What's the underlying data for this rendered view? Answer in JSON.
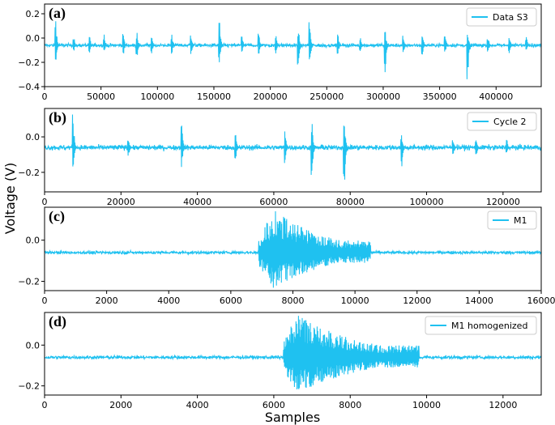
{
  "figure": {
    "ylabel": "Voltage (V)",
    "xlabel": "Samples",
    "line_color": "#1fc1f0"
  },
  "chart_data": [
    {
      "type": "line",
      "panel": "(a)",
      "series": [
        {
          "name": "Data S3"
        }
      ],
      "xlim": [
        0,
        440000
      ],
      "ylim": [
        -0.4,
        0.28
      ],
      "xticks": [
        0,
        50000,
        100000,
        150000,
        200000,
        250000,
        300000,
        350000,
        400000
      ],
      "yticks": [
        0.2,
        0.0,
        -0.2,
        -0.4
      ],
      "ytick_labels": [
        "0.2",
        "0.0",
        "−0.2",
        "−0.4"
      ],
      "baseline": -0.06,
      "noise": 0.012,
      "events": [
        {
          "x": 10000,
          "peak": 0.16,
          "trough": -0.21
        },
        {
          "x": 26000,
          "peak": 0.02,
          "trough": -0.11
        },
        {
          "x": 40000,
          "peak": 0.02,
          "trough": -0.12
        },
        {
          "x": 53000,
          "peak": 0.03,
          "trough": -0.12
        },
        {
          "x": 70000,
          "peak": 0.04,
          "trough": -0.14
        },
        {
          "x": 82000,
          "peak": 0.05,
          "trough": -0.2
        },
        {
          "x": 95000,
          "peak": 0.02,
          "trough": -0.13
        },
        {
          "x": 113000,
          "peak": 0.03,
          "trough": -0.13
        },
        {
          "x": 130000,
          "peak": 0.04,
          "trough": -0.14
        },
        {
          "x": 155000,
          "peak": 0.15,
          "trough": -0.24
        },
        {
          "x": 175000,
          "peak": 0.03,
          "trough": -0.13
        },
        {
          "x": 190000,
          "peak": 0.05,
          "trough": -0.15
        },
        {
          "x": 205000,
          "peak": 0.03,
          "trough": -0.13
        },
        {
          "x": 225000,
          "peak": 0.09,
          "trough": -0.23
        },
        {
          "x": 235000,
          "peak": 0.13,
          "trough": -0.28
        },
        {
          "x": 260000,
          "peak": 0.04,
          "trough": -0.14
        },
        {
          "x": 280000,
          "peak": 0.02,
          "trough": -0.12
        },
        {
          "x": 302000,
          "peak": 0.07,
          "trough": -0.32
        },
        {
          "x": 318000,
          "peak": 0.03,
          "trough": -0.13
        },
        {
          "x": 335000,
          "peak": 0.04,
          "trough": -0.15
        },
        {
          "x": 355000,
          "peak": 0.03,
          "trough": -0.12
        },
        {
          "x": 375000,
          "peak": 0.05,
          "trough": -0.36
        },
        {
          "x": 393000,
          "peak": 0.02,
          "trough": -0.12
        },
        {
          "x": 412000,
          "peak": 0.03,
          "trough": -0.13
        },
        {
          "x": 427000,
          "peak": 0.02,
          "trough": -0.11
        }
      ]
    },
    {
      "type": "line",
      "panel": "(b)",
      "series": [
        {
          "name": "Cycle 2"
        }
      ],
      "xlim": [
        0,
        130000
      ],
      "ylim": [
        -0.31,
        0.16
      ],
      "xticks": [
        0,
        20000,
        40000,
        60000,
        80000,
        100000,
        120000
      ],
      "yticks": [
        0.0,
        -0.2
      ],
      "ytick_labels": [
        "0.0",
        "−0.2"
      ],
      "baseline": -0.06,
      "noise": 0.012,
      "events": [
        {
          "x": 7500,
          "peak": 0.14,
          "trough": -0.25
        },
        {
          "x": 22000,
          "peak": 0.0,
          "trough": -0.12
        },
        {
          "x": 36000,
          "peak": 0.07,
          "trough": -0.17
        },
        {
          "x": 50000,
          "peak": 0.03,
          "trough": -0.15
        },
        {
          "x": 63000,
          "peak": 0.04,
          "trough": -0.16
        },
        {
          "x": 70000,
          "peak": 0.1,
          "trough": -0.26
        },
        {
          "x": 78500,
          "peak": 0.14,
          "trough": -0.3
        },
        {
          "x": 93500,
          "peak": 0.02,
          "trough": -0.19
        },
        {
          "x": 107000,
          "peak": -0.01,
          "trough": -0.12
        },
        {
          "x": 113000,
          "peak": 0.0,
          "trough": -0.12
        },
        {
          "x": 121000,
          "peak": -0.01,
          "trough": -0.11
        }
      ]
    },
    {
      "type": "line",
      "panel": "(c)",
      "series": [
        {
          "name": "M1"
        }
      ],
      "xlim": [
        0,
        16000
      ],
      "ylim": [
        -0.245,
        0.16
      ],
      "xticks": [
        0,
        2000,
        4000,
        6000,
        8000,
        10000,
        12000,
        14000,
        16000
      ],
      "yticks": [
        0.0,
        -0.2
      ],
      "ytick_labels": [
        "0.0",
        "−0.2"
      ],
      "baseline": -0.06,
      "noise": 0.006,
      "burst": {
        "start": 6900,
        "end": 10500,
        "peak_x": 7400,
        "max_up": 0.15,
        "max_down": -0.24
      }
    },
    {
      "type": "line",
      "panel": "(d)",
      "series": [
        {
          "name": "M1 homogenized"
        }
      ],
      "xlim": [
        0,
        13000
      ],
      "ylim": [
        -0.245,
        0.16
      ],
      "xticks": [
        0,
        2000,
        4000,
        6000,
        8000,
        10000,
        12000
      ],
      "yticks": [
        0.0,
        -0.2
      ],
      "ytick_labels": [
        "0.0",
        "−0.2"
      ],
      "baseline": -0.06,
      "noise": 0.007,
      "burst": {
        "start": 6250,
        "end": 9800,
        "peak_x": 6600,
        "max_up": 0.15,
        "max_down": -0.24
      }
    }
  ]
}
